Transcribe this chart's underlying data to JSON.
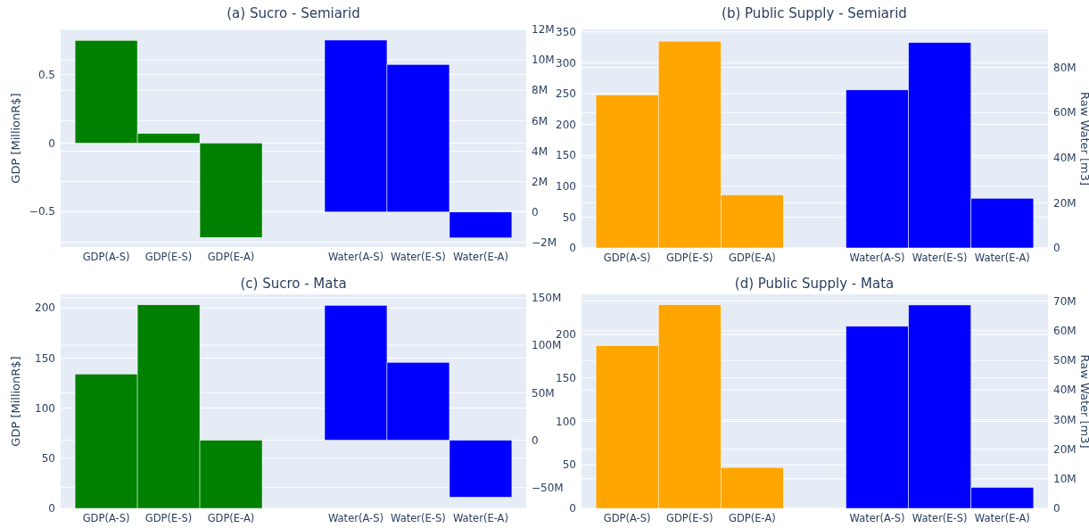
{
  "chart_data": [
    {
      "type": "bar",
      "title": "(a) Sucro - Semiarid",
      "ylabel": "GDP [MillionR$]",
      "categories": [
        "GDP(A-S)",
        "GDP(E-S)",
        "GDP(E-A)",
        null,
        "Water(A-S)",
        "Water(E-S)",
        "Water(E-A)"
      ],
      "series": [
        {
          "color": "#008000",
          "values": [
            0.75,
            0.07,
            -0.69,
            null,
            null,
            null,
            null
          ]
        },
        {
          "color": "#0000ff",
          "axis": "y2",
          "values": [
            null,
            null,
            null,
            null,
            11300000,
            9700000,
            -1700000
          ]
        }
      ],
      "ylim": [
        -0.76,
        0.83
      ],
      "yticks": [
        {
          "value": -0.5,
          "label": "−0.5"
        },
        0,
        0.5
      ],
      "y2lim": [
        -2300000,
        12000000
      ],
      "y2ticks": [
        {
          "value": -2000000,
          "label": "−2M"
        },
        {
          "value": 0,
          "label": "0"
        },
        {
          "value": 2000000,
          "label": "2M"
        },
        {
          "value": 4000000,
          "label": "4M"
        },
        {
          "value": 6000000,
          "label": "6M"
        },
        {
          "value": 8000000,
          "label": "8M"
        },
        {
          "value": 10000000,
          "label": "10M"
        },
        {
          "value": 12000000,
          "label": "12M"
        }
      ],
      "grid": true
    },
    {
      "type": "bar",
      "title": "(b) Public Supply - Semiarid",
      "y2label": "Raw Water [m3]",
      "categories": [
        "GDP(A-S)",
        "GDP(E-S)",
        "GDP(E-A)",
        null,
        "Water(A-S)",
        "Water(E-S)",
        "Water(E-A)"
      ],
      "series": [
        {
          "color": "#ffa500",
          "values": [
            248,
            335,
            86,
            null,
            null,
            null,
            null
          ]
        },
        {
          "color": "#0000ff",
          "axis": "y2",
          "values": [
            null,
            null,
            null,
            null,
            70000000,
            91000000,
            22000000
          ]
        }
      ],
      "ylim": [
        0,
        354
      ],
      "yticks": [
        0,
        50,
        100,
        150,
        200,
        250,
        300,
        350
      ],
      "y2lim": [
        0,
        96800000
      ],
      "y2ticks": [
        {
          "value": 0,
          "label": "0"
        },
        {
          "value": 20000000,
          "label": "20M"
        },
        {
          "value": 40000000,
          "label": "40M"
        },
        {
          "value": 60000000,
          "label": "60M"
        },
        {
          "value": 80000000,
          "label": "80M"
        }
      ],
      "grid": true
    },
    {
      "type": "bar",
      "title": "(c) Sucro - Mata",
      "ylabel": "GDP [MillionR$]",
      "categories": [
        "GDP(A-S)",
        "GDP(E-S)",
        "GDP(E-A)",
        null,
        "Water(A-S)",
        "Water(E-S)",
        "Water(E-A)"
      ],
      "series": [
        {
          "color": "#008000",
          "values": [
            134,
            203,
            68,
            null,
            null,
            null,
            null
          ]
        },
        {
          "color": "#0000ff",
          "axis": "y2",
          "values": [
            null,
            null,
            null,
            null,
            142000000,
            82000000,
            -60000000
          ]
        }
      ],
      "ylim": [
        0,
        213.5
      ],
      "yticks": [
        0,
        50,
        100,
        150,
        200
      ],
      "y2lim": [
        -71800000,
        153600000
      ],
      "y2ticks": [
        {
          "value": -50000000,
          "label": "−50M"
        },
        {
          "value": 0,
          "label": "0"
        },
        {
          "value": 50000000,
          "label": "50M"
        },
        {
          "value": 100000000,
          "label": "100M"
        },
        {
          "value": 150000000,
          "label": "150M"
        }
      ],
      "grid": true
    },
    {
      "type": "bar",
      "title": "(d) Public Supply - Mata",
      "y2label": "Raw Water [m3]",
      "categories": [
        "GDP(A-S)",
        "GDP(E-S)",
        "GDP(E-A)",
        null,
        "Water(A-S)",
        "Water(E-S)",
        "Water(E-A)"
      ],
      "series": [
        {
          "color": "#ffa500",
          "values": [
            187,
            234,
            47,
            null,
            null,
            null,
            null
          ]
        },
        {
          "color": "#0000ff",
          "axis": "y2",
          "values": [
            null,
            null,
            null,
            null,
            61500000,
            68700000,
            7100000
          ]
        }
      ],
      "ylim": [
        0,
        246
      ],
      "yticks": [
        0,
        50,
        100,
        150,
        200
      ],
      "y2lim": [
        0,
        72300000
      ],
      "y2ticks": [
        {
          "value": 0,
          "label": "0"
        },
        {
          "value": 10000000,
          "label": "10M"
        },
        {
          "value": 20000000,
          "label": "20M"
        },
        {
          "value": 30000000,
          "label": "30M"
        },
        {
          "value": 40000000,
          "label": "40M"
        },
        {
          "value": 50000000,
          "label": "50M"
        },
        {
          "value": 60000000,
          "label": "60M"
        },
        {
          "value": 70000000,
          "label": "70M"
        }
      ],
      "grid": true
    }
  ]
}
